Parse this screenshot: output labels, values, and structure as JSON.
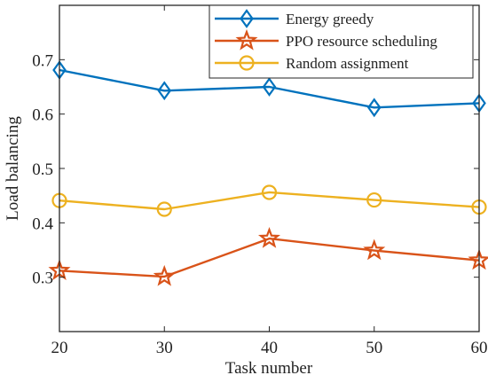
{
  "chart_data": {
    "type": "line",
    "title": "",
    "xlabel": "Task number",
    "ylabel": "Load balancing",
    "x": [
      20,
      30,
      40,
      50,
      60
    ],
    "xlim": [
      20,
      60
    ],
    "ylim": [
      0.2,
      0.8
    ],
    "xticks": [
      "20",
      "30",
      "40",
      "50",
      "60"
    ],
    "yticks": [
      "0.3",
      "0.4",
      "0.5",
      "0.6",
      "0.7"
    ],
    "ytick_values": [
      0.3,
      0.4,
      0.5,
      0.6,
      0.7
    ],
    "grid": false,
    "legend_position": "top-right",
    "series": [
      {
        "name": "Energy greedy",
        "color": "#0072BD",
        "marker": "diamond",
        "values": [
          0.681,
          0.643,
          0.65,
          0.612,
          0.62
        ]
      },
      {
        "name": "PPO resource scheduling",
        "color": "#D95319",
        "marker": "star",
        "values": [
          0.312,
          0.301,
          0.371,
          0.349,
          0.331
        ]
      },
      {
        "name": "Random assignment",
        "color": "#EDB120",
        "marker": "circle",
        "values": [
          0.441,
          0.425,
          0.456,
          0.442,
          0.429
        ]
      }
    ]
  }
}
